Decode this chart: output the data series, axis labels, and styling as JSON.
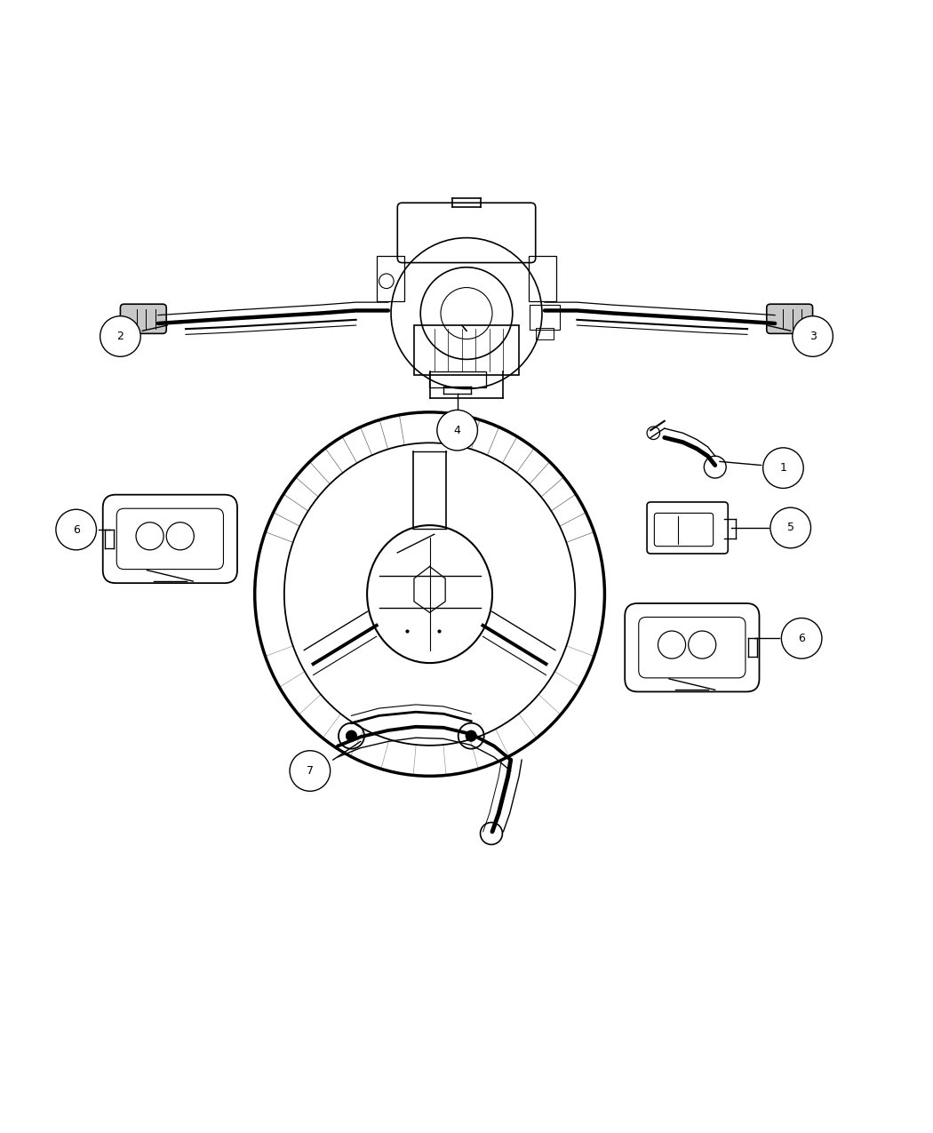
{
  "background_color": "#ffffff",
  "line_color": "#000000",
  "figure_width": 10.5,
  "figure_height": 12.75,
  "dpi": 100
}
